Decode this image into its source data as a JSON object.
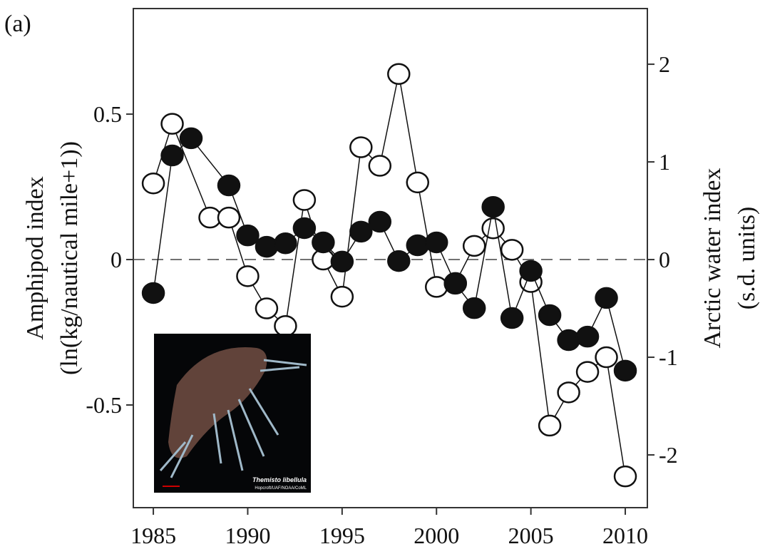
{
  "chart_data": {
    "type": "line",
    "panel_label": "(a)",
    "y_label": [
      "Amphipod index",
      "(ln(kg/nautical mile+1))"
    ],
    "y2_label": [
      "Arctic  water index",
      "(s.d. units)"
    ],
    "xlim": [
      1983.94,
      2011.17
    ],
    "xticks": [
      1985,
      1990,
      1995,
      2000,
      2005,
      2010
    ],
    "ylim": [
      -0.853,
      0.863
    ],
    "yticks": [
      -0.5,
      0,
      0.5
    ],
    "y2lim": [
      -2.54,
      2.57
    ],
    "y2ticks": [
      -2,
      -1,
      0,
      1,
      2
    ],
    "reference_line": 0,
    "series": [
      {
        "axis": "y2",
        "marker": "open",
        "color": "#111111",
        "x": [
          1985,
          1986,
          1988,
          1989,
          1990,
          1991,
          1992,
          1993,
          1994,
          1995,
          1996,
          1997,
          1998,
          1999,
          2000,
          2001,
          2002,
          2003,
          2004,
          2005,
          2006,
          2007,
          2008,
          2009,
          2010
        ],
        "values": [
          0.78,
          1.39,
          0.43,
          0.43,
          -0.17,
          -0.5,
          -0.68,
          0.61,
          0.0,
          -0.38,
          1.15,
          0.96,
          1.9,
          0.79,
          -0.28,
          -0.24,
          0.14,
          0.32,
          0.1,
          -0.23,
          -1.7,
          -1.36,
          -1.15,
          -1.0,
          -2.22
        ]
      },
      {
        "axis": "y",
        "marker": "filled",
        "color": "#111111",
        "x": [
          1985,
          1986,
          1987,
          1989,
          1990,
          1991,
          1992,
          1993,
          1994,
          1995,
          1996,
          1997,
          1998,
          1999,
          2000,
          2001,
          2002,
          2003,
          2004,
          2005,
          2006,
          2007,
          2008,
          2009,
          2010
        ],
        "values": [
          -0.115,
          0.358,
          0.417,
          0.255,
          0.083,
          0.044,
          0.056,
          0.108,
          0.059,
          -0.007,
          0.096,
          0.13,
          -0.005,
          0.049,
          0.059,
          -0.083,
          -0.167,
          0.181,
          -0.201,
          -0.039,
          -0.191,
          -0.277,
          -0.265,
          -0.132,
          -0.382
        ]
      }
    ],
    "inset": {
      "species": "Themisto libellula",
      "credit": "Hopcroft/UAF/NOAA/CoML"
    }
  }
}
